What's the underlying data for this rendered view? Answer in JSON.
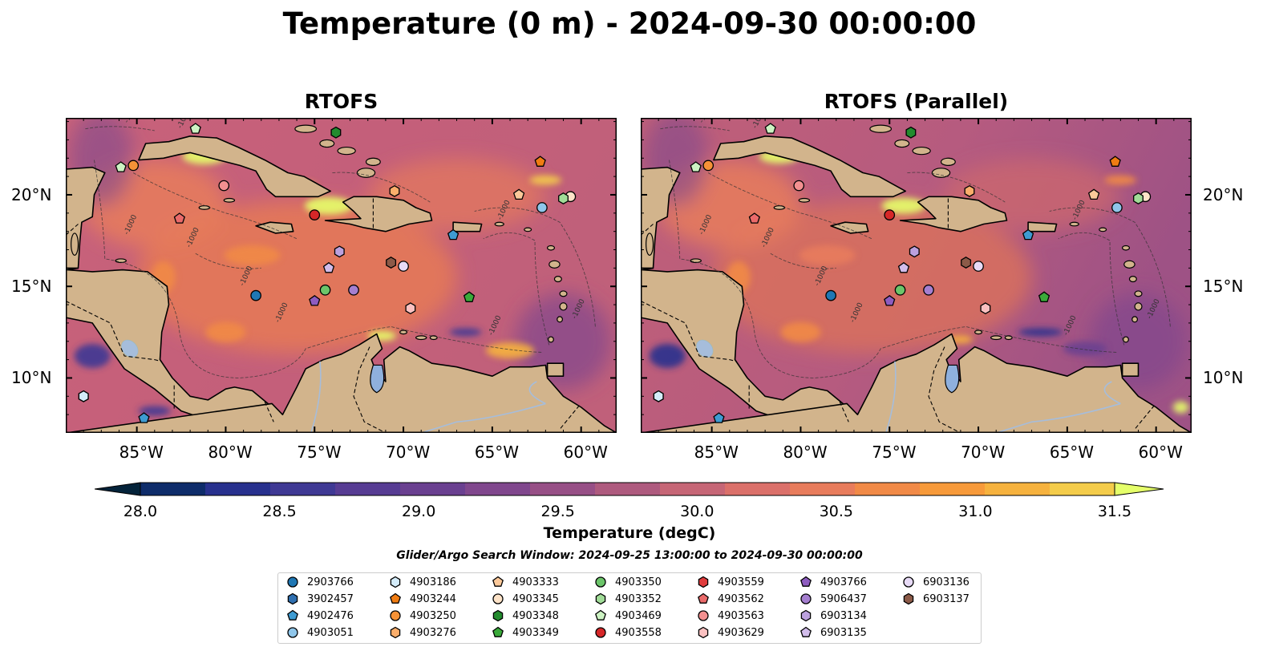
{
  "title": "Temperature (0 m) - 2024-09-30 00:00:00",
  "panels": [
    {
      "title": "RTOFS"
    },
    {
      "title": "RTOFS (Parallel)"
    }
  ],
  "axes": {
    "lon_ticks": [
      "85°W",
      "80°W",
      "75°W",
      "70°W",
      "65°W",
      "60°W"
    ],
    "lat_ticks": [
      "20°N",
      "15°N",
      "10°N"
    ],
    "lon_range": [
      -89,
      -58
    ],
    "lat_range": [
      7,
      24.2
    ]
  },
  "colorbar": {
    "label": "Temperature (degC)",
    "ticks": [
      "28.0",
      "28.5",
      "29.0",
      "29.5",
      "30.0",
      "30.5",
      "31.0",
      "31.5"
    ],
    "range": [
      28.0,
      31.5
    ],
    "colors": [
      "#04233a",
      "#0e2c6a",
      "#28318e",
      "#3f3994",
      "#573c93",
      "#6a4090",
      "#80478d",
      "#974f86",
      "#ae5a7e",
      "#c66676",
      "#db706a",
      "#e87c5c",
      "#f18a47",
      "#f79a3a",
      "#f6b23e",
      "#f4cc4a",
      "#e5ff6a"
    ]
  },
  "contour_label": "-1000",
  "search_window": "Glider/Argo Search Window: 2024-09-25 13:00:00 to 2024-09-30 00:00:00",
  "legend": [
    {
      "id": "2903766",
      "marker": "circle",
      "color": "#1f77b4"
    },
    {
      "id": "3902457",
      "marker": "hexagon",
      "color": "#2f6fb0"
    },
    {
      "id": "4902476",
      "marker": "pentagon",
      "color": "#3e9bd2"
    },
    {
      "id": "4903051",
      "marker": "circle",
      "color": "#8fc6ea"
    },
    {
      "id": "4903186",
      "marker": "hexagon",
      "color": "#d4ecfa"
    },
    {
      "id": "4903244",
      "marker": "pentagon",
      "color": "#f07c12"
    },
    {
      "id": "4903250",
      "marker": "circle",
      "color": "#f59237"
    },
    {
      "id": "4903276",
      "marker": "hexagon",
      "color": "#fbae6b"
    },
    {
      "id": "4903333",
      "marker": "pentagon",
      "color": "#fcc99a"
    },
    {
      "id": "4903345",
      "marker": "circle",
      "color": "#fde3c8"
    },
    {
      "id": "4903348",
      "marker": "hexagon",
      "color": "#238b2e"
    },
    {
      "id": "4903349",
      "marker": "pentagon",
      "color": "#3aaa3a"
    },
    {
      "id": "4903350",
      "marker": "circle",
      "color": "#6cc56a"
    },
    {
      "id": "4903352",
      "marker": "hexagon",
      "color": "#a1dc98"
    },
    {
      "id": "4903469",
      "marker": "pentagon",
      "color": "#cdf3c3"
    },
    {
      "id": "4903558",
      "marker": "circle",
      "color": "#d62728"
    },
    {
      "id": "4903559",
      "marker": "hexagon",
      "color": "#e03c3d"
    },
    {
      "id": "4903562",
      "marker": "pentagon",
      "color": "#ea6a6a"
    },
    {
      "id": "4903563",
      "marker": "circle",
      "color": "#f39090"
    },
    {
      "id": "4903629",
      "marker": "hexagon",
      "color": "#fbc1c1"
    },
    {
      "id": "4903766",
      "marker": "pentagon",
      "color": "#8e5cc0"
    },
    {
      "id": "5906437",
      "marker": "circle",
      "color": "#a57fd0"
    },
    {
      "id": "6903134",
      "marker": "hexagon",
      "color": "#bca1de"
    },
    {
      "id": "6903135",
      "marker": "pentagon",
      "color": "#d2bdeb"
    },
    {
      "id": "6903136",
      "marker": "circle",
      "color": "#e8dbf7"
    },
    {
      "id": "6903137",
      "marker": "hexagon",
      "color": "#8c5a48"
    }
  ],
  "stations": [
    {
      "id": "2903766",
      "lon": -78.3,
      "lat": 14.5
    },
    {
      "id": "3902457",
      "lon": -88.0,
      "lat": 9.0
    },
    {
      "id": "4902476",
      "lon": -84.6,
      "lat": 7.8
    },
    {
      "id": "4902476",
      "lon": -67.2,
      "lat": 17.8
    },
    {
      "id": "4903051",
      "lon": -62.2,
      "lat": 19.3
    },
    {
      "id": "4903186",
      "lon": -88.0,
      "lat": 9.0
    },
    {
      "id": "4903244",
      "lon": -62.3,
      "lat": 21.8
    },
    {
      "id": "4903250",
      "lon": -85.2,
      "lat": 21.6
    },
    {
      "id": "4903276",
      "lon": -70.5,
      "lat": 20.2
    },
    {
      "id": "4903333",
      "lon": -63.5,
      "lat": 20.0
    },
    {
      "id": "4903345",
      "lon": -60.6,
      "lat": 19.9
    },
    {
      "id": "4903348",
      "lon": -73.8,
      "lat": 23.4
    },
    {
      "id": "4903349",
      "lon": -66.3,
      "lat": 14.4
    },
    {
      "id": "4903350",
      "lon": -74.4,
      "lat": 14.8
    },
    {
      "id": "4903352",
      "lon": -61.0,
      "lat": 19.8
    },
    {
      "id": "4903469",
      "lon": -81.7,
      "lat": 23.6
    },
    {
      "id": "4903469",
      "lon": -85.9,
      "lat": 21.5
    },
    {
      "id": "4903558",
      "lon": -75.0,
      "lat": 18.9
    },
    {
      "id": "4903562",
      "lon": -82.6,
      "lat": 18.7
    },
    {
      "id": "4903563",
      "lon": -80.1,
      "lat": 20.5
    },
    {
      "id": "4903629",
      "lon": -69.6,
      "lat": 13.8
    },
    {
      "id": "4903766",
      "lon": -75.0,
      "lat": 14.2
    },
    {
      "id": "5906437",
      "lon": -72.8,
      "lat": 14.8
    },
    {
      "id": "6903134",
      "lon": -73.6,
      "lat": 16.9
    },
    {
      "id": "6903135",
      "lon": -74.2,
      "lat": 16.0
    },
    {
      "id": "6903136",
      "lon": -70.0,
      "lat": 16.1
    },
    {
      "id": "6903137",
      "lon": -70.7,
      "lat": 16.3
    }
  ]
}
